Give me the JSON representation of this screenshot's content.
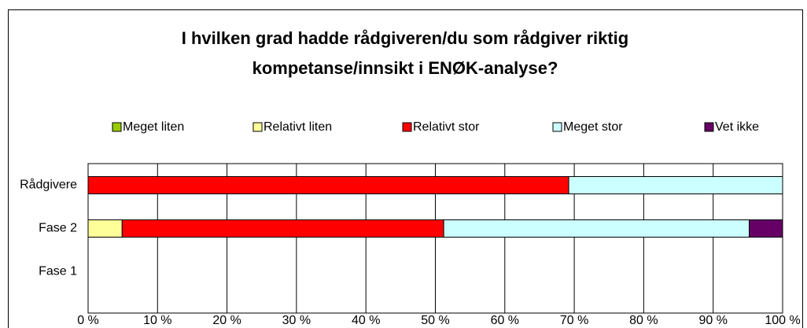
{
  "chart_data": {
    "type": "stacked-bar-horizontal",
    "title": "I hvilken grad hadde rådgiveren/du som rådgiver riktig kompetanse/innsikt i ENØK-analyse?",
    "categories": [
      "Rådgivere",
      "Fase 2",
      "Fase 1"
    ],
    "series": [
      {
        "name": "Meget liten",
        "color": "#99cc00",
        "values": [
          0,
          0,
          0
        ]
      },
      {
        "name": "Relativt liten",
        "color": "#ffff99",
        "values": [
          0,
          4.9,
          0
        ]
      },
      {
        "name": "Relativt stor",
        "color": "#ff0000",
        "values": [
          69.2,
          46.3,
          0
        ]
      },
      {
        "name": "Meget stor",
        "color": "#ccffff",
        "values": [
          30.8,
          44.0,
          0
        ]
      },
      {
        "name": "Vet ikke",
        "color": "#660066",
        "values": [
          0,
          4.8,
          0
        ]
      }
    ],
    "xlim": [
      0,
      100
    ],
    "xticks": [
      {
        "value": 0,
        "label": "0 %"
      },
      {
        "value": 10,
        "label": "10 %"
      },
      {
        "value": 20,
        "label": "20 %"
      },
      {
        "value": 30,
        "label": "30 %"
      },
      {
        "value": 40,
        "label": "40 %"
      },
      {
        "value": 50,
        "label": "50 %"
      },
      {
        "value": 60,
        "label": "60 %"
      },
      {
        "value": 70,
        "label": "70 %"
      },
      {
        "value": 80,
        "label": "80 %"
      },
      {
        "value": 90,
        "label": "90 %"
      },
      {
        "value": 100,
        "label": "100 %"
      }
    ],
    "grid": true,
    "legend": "top"
  }
}
